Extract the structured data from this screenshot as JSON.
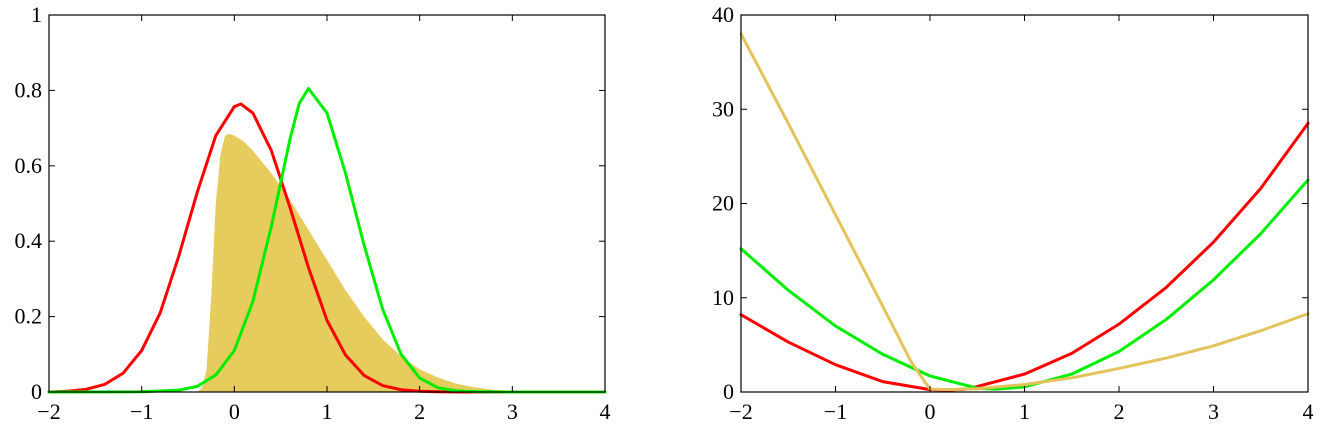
{
  "chart_data": [
    {
      "type": "line",
      "panel": "left",
      "title": "",
      "xlabel": "",
      "ylabel": "",
      "xlim": [
        -2,
        4
      ],
      "ylim": [
        0,
        1
      ],
      "xticks": [
        -2,
        -1,
        0,
        1,
        2,
        3,
        4
      ],
      "yticks": [
        0,
        0.2,
        0.4,
        0.6,
        0.8,
        1
      ],
      "xtick_labels": [
        "−2",
        "−1",
        "0",
        "1",
        "2",
        "3",
        "4"
      ],
      "ytick_labels": [
        "0",
        "0.2",
        "0.4",
        "0.6",
        "0.8",
        "1"
      ],
      "grid": false,
      "legend": "none",
      "area": {
        "color": "#E5CC5C",
        "x": [
          -2,
          -0.4,
          -0.35,
          -0.3,
          -0.25,
          -0.2,
          -0.15,
          -0.1,
          -0.05,
          0,
          0.1,
          0.2,
          0.4,
          0.6,
          0.8,
          1.0,
          1.2,
          1.4,
          1.6,
          1.8,
          2.0,
          2.2,
          2.4,
          2.6,
          2.8,
          3.0,
          3.5,
          4
        ],
        "y": [
          0,
          0,
          0.01,
          0.06,
          0.25,
          0.5,
          0.63,
          0.68,
          0.685,
          0.68,
          0.665,
          0.64,
          0.58,
          0.51,
          0.43,
          0.35,
          0.27,
          0.2,
          0.14,
          0.095,
          0.06,
          0.038,
          0.022,
          0.012,
          0.006,
          0.003,
          0.0005,
          0
        ]
      },
      "series": [
        {
          "color": "#FF0000",
          "x": [
            -2,
            -1.8,
            -1.6,
            -1.4,
            -1.2,
            -1.0,
            -0.8,
            -0.6,
            -0.4,
            -0.2,
            0,
            0.07,
            0.2,
            0.4,
            0.6,
            0.8,
            1.0,
            1.2,
            1.4,
            1.6,
            1.8,
            2.0,
            2.2,
            2.4,
            2.6,
            3,
            4
          ],
          "y": [
            0.0,
            0.002,
            0.007,
            0.02,
            0.05,
            0.11,
            0.21,
            0.36,
            0.53,
            0.68,
            0.757,
            0.764,
            0.74,
            0.64,
            0.49,
            0.33,
            0.19,
            0.098,
            0.044,
            0.017,
            0.006,
            0.002,
            0.0005,
            0.0001,
            0,
            0,
            0
          ]
        },
        {
          "color": "#00EE00",
          "x": [
            -2,
            -1,
            -0.6,
            -0.4,
            -0.2,
            0,
            0.2,
            0.4,
            0.6,
            0.7,
            0.8,
            1.0,
            1.2,
            1.4,
            1.6,
            1.8,
            2.0,
            2.2,
            2.4,
            2.6,
            3,
            4
          ],
          "y": [
            0,
            0.0005,
            0.005,
            0.015,
            0.045,
            0.11,
            0.24,
            0.44,
            0.67,
            0.765,
            0.805,
            0.74,
            0.58,
            0.39,
            0.22,
            0.1,
            0.037,
            0.011,
            0.003,
            0.001,
            0,
            0
          ]
        }
      ]
    },
    {
      "type": "line",
      "panel": "right",
      "title": "",
      "xlabel": "",
      "ylabel": "",
      "xlim": [
        -2,
        4
      ],
      "ylim": [
        0,
        40
      ],
      "xticks": [
        -2,
        -1,
        0,
        1,
        2,
        3,
        4
      ],
      "yticks": [
        0,
        10,
        20,
        30,
        40
      ],
      "xtick_labels": [
        "−2",
        "−1",
        "0",
        "1",
        "2",
        "3",
        "4"
      ],
      "ytick_labels": [
        "0",
        "10",
        "20",
        "30",
        "40"
      ],
      "grid": false,
      "legend": "none",
      "series": [
        {
          "color": "#FF0000",
          "x": [
            -2,
            -1.5,
            -1,
            -0.5,
            0,
            0.2,
            0.4,
            1,
            1.5,
            2,
            2.5,
            3,
            3.5,
            4
          ],
          "y": [
            8.2,
            5.3,
            2.9,
            1.1,
            0.25,
            0.2,
            0.32,
            1.9,
            4.1,
            7.2,
            11.1,
            15.9,
            21.6,
            28.5
          ]
        },
        {
          "color": "#00EE00",
          "x": [
            -2,
            -1.5,
            -1,
            -0.5,
            0,
            0.5,
            0.7,
            1,
            1.5,
            2,
            2.5,
            3,
            3.5,
            4
          ],
          "y": [
            15.2,
            10.8,
            7.0,
            4.0,
            1.7,
            0.4,
            0.3,
            0.55,
            1.9,
            4.3,
            7.7,
            11.9,
            16.8,
            22.5
          ]
        },
        {
          "color": "#E5C35C",
          "x": [
            -2,
            -1.5,
            -1,
            -0.5,
            -0.2,
            0,
            0.2,
            0.5,
            1,
            1.5,
            2,
            2.5,
            3,
            3.5,
            4
          ],
          "y": [
            38.0,
            28.5,
            18.8,
            9.1,
            3.2,
            0.3,
            0.25,
            0.35,
            0.8,
            1.5,
            2.5,
            3.6,
            4.9,
            6.5,
            8.3
          ]
        }
      ]
    }
  ]
}
